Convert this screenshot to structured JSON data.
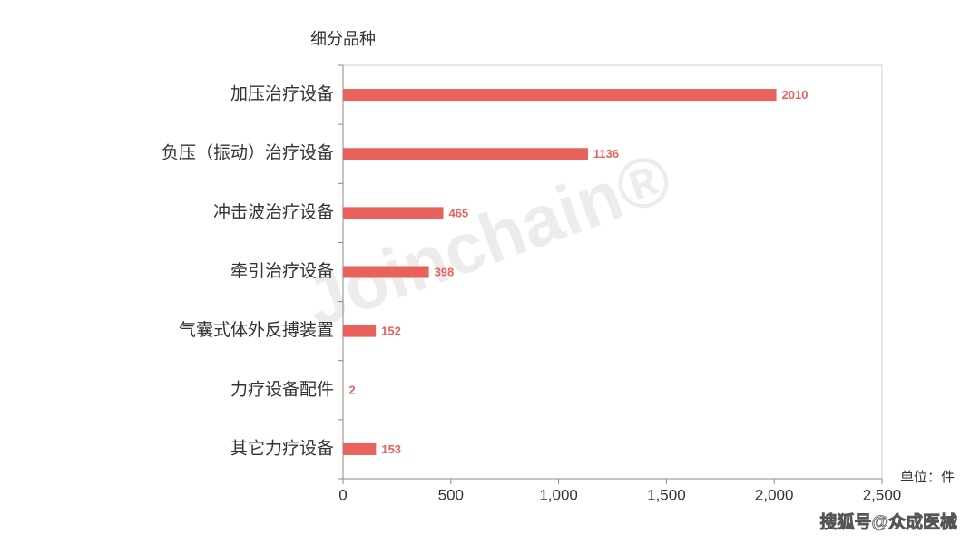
{
  "chart_data": {
    "type": "hbar",
    "y_axis_title": "细分品种",
    "unit_label": "单位：件",
    "watermark": "Joinchain®",
    "source_label": "搜狐号@众成医械",
    "categories": [
      "加压治疗设备",
      "负压（振动）治疗设备",
      "冲击波治疗设备",
      "牵引治疗设备",
      "气囊式体外反搏装置",
      "力疗设备配件",
      "其它力疗设备"
    ],
    "values": [
      2010,
      1136,
      465,
      398,
      152,
      2,
      153
    ],
    "color": "#e8625b",
    "xlim": [
      0,
      2500
    ],
    "xticks": [
      0,
      500,
      {
        "value": 1000,
        "label": "1,000"
      },
      {
        "value": 1500,
        "label": "1,500"
      },
      {
        "value": 2000,
        "label": "2,000"
      },
      {
        "value": 2500,
        "label": "2,500"
      }
    ],
    "grid": false
  }
}
